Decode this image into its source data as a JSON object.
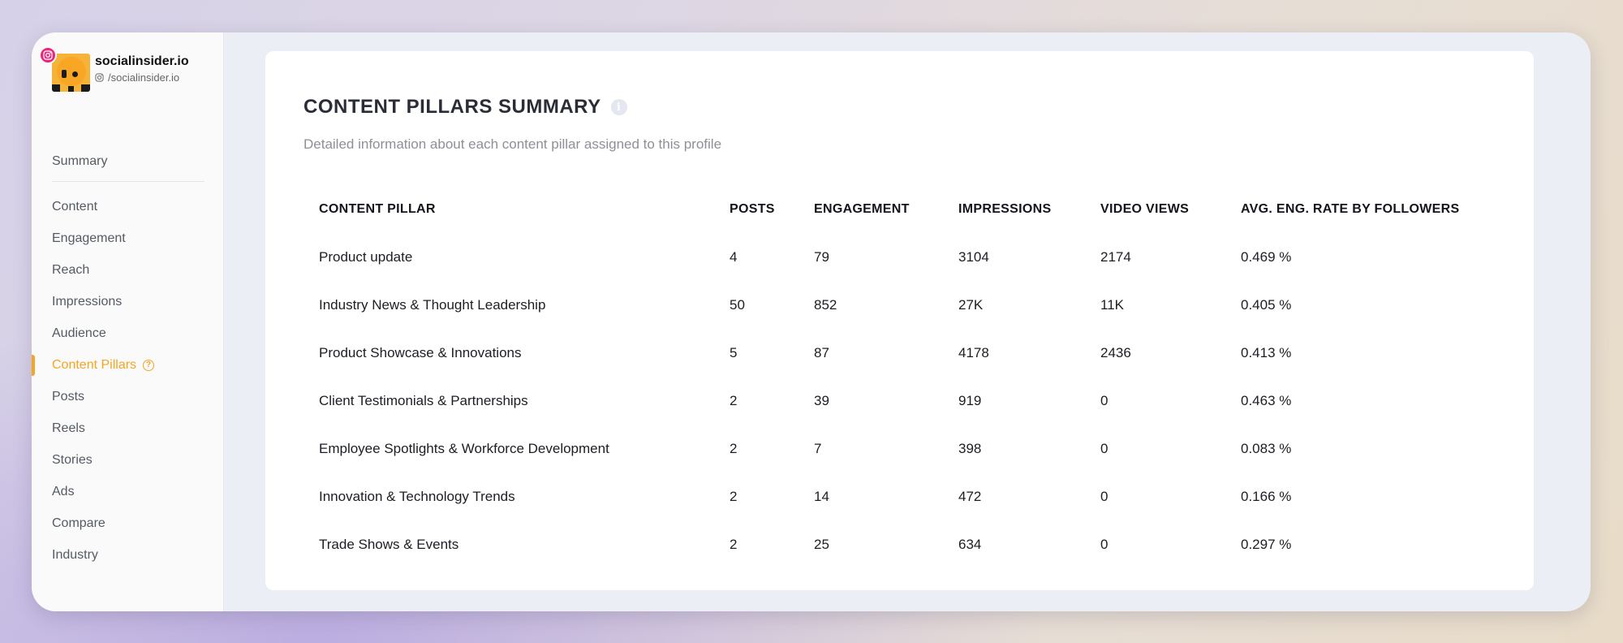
{
  "profile": {
    "name": "socialinsider.io",
    "handle": "/socialinsider.io"
  },
  "sidebar": {
    "summary": "Summary",
    "items": [
      {
        "label": "Content"
      },
      {
        "label": "Engagement"
      },
      {
        "label": "Reach"
      },
      {
        "label": "Impressions"
      },
      {
        "label": "Audience"
      },
      {
        "label": "Content Pillars",
        "active": true
      },
      {
        "label": "Posts"
      },
      {
        "label": "Reels"
      },
      {
        "label": "Stories"
      },
      {
        "label": "Ads"
      },
      {
        "label": "Compare"
      },
      {
        "label": "Industry"
      }
    ],
    "help_glyph": "?"
  },
  "card": {
    "title": "CONTENT PILLARS SUMMARY",
    "info_glyph": "i",
    "subtitle": "Detailed information about each content pillar assigned to this profile"
  },
  "table": {
    "headers": [
      "CONTENT PILLAR",
      "POSTS",
      "ENGAGEMENT",
      "IMPRESSIONS",
      "VIDEO VIEWS",
      "AVG. ENG. RATE BY FOLLOWERS"
    ],
    "rows": [
      [
        "Product update",
        "4",
        "79",
        "3104",
        "2174",
        "0.469 %"
      ],
      [
        "Industry News & Thought Leadership",
        "50",
        "852",
        "27K",
        "11K",
        "0.405 %"
      ],
      [
        "Product Showcase & Innovations",
        "5",
        "87",
        "4178",
        "2436",
        "0.413 %"
      ],
      [
        "Client Testimonials & Partnerships",
        "2",
        "39",
        "919",
        "0",
        "0.463 %"
      ],
      [
        "Employee Spotlights & Workforce Development",
        "2",
        "7",
        "398",
        "0",
        "0.083 %"
      ],
      [
        "Innovation & Technology Trends",
        "2",
        "14",
        "472",
        "0",
        "0.166 %"
      ],
      [
        "Trade Shows & Events",
        "2",
        "25",
        "634",
        "0",
        "0.297 %"
      ]
    ]
  },
  "colors": {
    "accent": "#f3a623",
    "instagram": "#e8267a",
    "text_dark": "#13151c",
    "text_muted": "#8d9097"
  }
}
